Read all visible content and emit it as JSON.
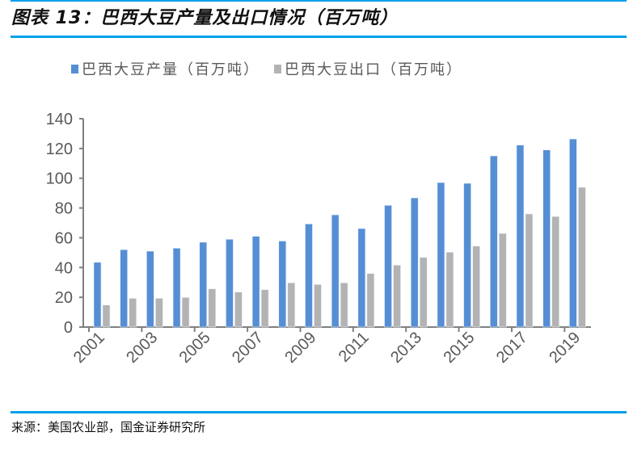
{
  "title": "图表 13：巴西大豆产量及出口情况（百万吨）",
  "source": "来源：美国农业部，国金证券研究所",
  "chart_data": {
    "type": "bar",
    "title": "",
    "xlabel": "",
    "ylabel": "",
    "ylim": [
      0,
      140
    ],
    "yticks": [
      0,
      20,
      40,
      60,
      80,
      100,
      120,
      140
    ],
    "grid": false,
    "legend_position": "top",
    "categories": [
      "2001",
      "2002",
      "2003",
      "2004",
      "2005",
      "2006",
      "2007",
      "2008",
      "2009",
      "2010",
      "2011",
      "2012",
      "2013",
      "2014",
      "2015",
      "2016",
      "2017",
      "2018",
      "2019"
    ],
    "tick_labels_shown": [
      "2001",
      "2003",
      "2005",
      "2007",
      "2009",
      "2011",
      "2013",
      "2015",
      "2017",
      "2019"
    ],
    "series": [
      {
        "name": "巴西大豆产量（百万吨）",
        "color": "#558ed5",
        "values": [
          43.5,
          52,
          51,
          53,
          57,
          59,
          61,
          57.8,
          69.3,
          75.4,
          66.2,
          81.8,
          86.8,
          97.1,
          96.6,
          115,
          122.3,
          119,
          126.4
        ]
      },
      {
        "name": "巴西大豆出口（百万吨）",
        "color": "#b3b3b3",
        "values": [
          14.8,
          19.3,
          19.3,
          19.9,
          25.7,
          23.5,
          25.1,
          29.7,
          28.6,
          29.7,
          36,
          41.6,
          46.8,
          50.3,
          54.4,
          62.9,
          76,
          74.3,
          93.9
        ]
      }
    ]
  }
}
